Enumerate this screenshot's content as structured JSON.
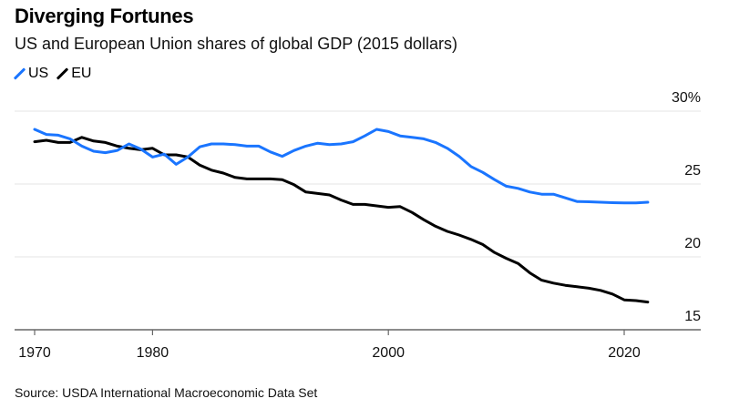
{
  "header": {
    "title": "Diverging Fortunes",
    "subtitle": "US and European Union shares of global GDP (2015 dollars)"
  },
  "legend": [
    {
      "label": "US",
      "color": "#1a75ff"
    },
    {
      "label": "EU",
      "color": "#000000"
    }
  ],
  "source": "Source: USDA International Macroeconomic Data Set",
  "chart_data": {
    "type": "line",
    "title": "Diverging Fortunes",
    "subtitle": "US and European Union shares of global GDP (2015 dollars)",
    "xlabel": "",
    "ylabel": "",
    "xlim": [
      1969,
      2025
    ],
    "ylim": [
      15,
      30
    ],
    "x_ticks": [
      1970,
      1980,
      2000,
      2020
    ],
    "x_tick_labels": [
      "1970",
      "1980",
      "2000",
      "2020"
    ],
    "y_ticks": [
      15,
      20,
      25,
      30
    ],
    "y_tick_labels": [
      "15",
      "20",
      "25",
      "30%"
    ],
    "y_axis_side": "right",
    "grid": true,
    "legend_position": "top-left",
    "x": [
      1970,
      1971,
      1972,
      1973,
      1974,
      1975,
      1976,
      1977,
      1978,
      1979,
      1980,
      1981,
      1982,
      1983,
      1984,
      1985,
      1986,
      1987,
      1988,
      1989,
      1990,
      1991,
      1992,
      1993,
      1994,
      1995,
      1996,
      1997,
      1998,
      1999,
      2000,
      2001,
      2002,
      2003,
      2004,
      2005,
      2006,
      2007,
      2008,
      2009,
      2010,
      2011,
      2012,
      2013,
      2014,
      2015,
      2016,
      2017,
      2018,
      2019,
      2020,
      2021,
      2022
    ],
    "series": [
      {
        "name": "US",
        "color": "#1a75ff",
        "values": [
          28.75,
          28.4,
          28.35,
          28.1,
          27.6,
          27.25,
          27.15,
          27.3,
          27.75,
          27.4,
          26.85,
          27.05,
          26.35,
          26.85,
          27.55,
          27.75,
          27.75,
          27.7,
          27.6,
          27.6,
          27.2,
          26.9,
          27.3,
          27.6,
          27.8,
          27.7,
          27.75,
          27.9,
          28.3,
          28.75,
          28.6,
          28.3,
          28.2,
          28.1,
          27.85,
          27.45,
          26.9,
          26.2,
          25.8,
          25.3,
          24.85,
          24.7,
          24.45,
          24.3,
          24.3,
          24.05,
          23.8,
          23.78,
          23.75,
          23.72,
          23.7,
          23.7,
          23.75
        ]
      },
      {
        "name": "EU",
        "color": "#000000",
        "values": [
          27.9,
          28.0,
          27.85,
          27.85,
          28.2,
          27.95,
          27.85,
          27.6,
          27.45,
          27.35,
          27.45,
          27.0,
          27.0,
          26.85,
          26.3,
          25.95,
          25.75,
          25.45,
          25.35,
          25.35,
          25.35,
          25.3,
          24.95,
          24.45,
          24.35,
          24.25,
          23.9,
          23.6,
          23.6,
          23.5,
          23.4,
          23.45,
          23.05,
          22.55,
          22.1,
          21.75,
          21.5,
          21.2,
          20.85,
          20.3,
          19.9,
          19.55,
          18.9,
          18.4,
          18.2,
          18.05,
          17.95,
          17.85,
          17.7,
          17.45,
          17.05,
          17.0,
          16.9
        ]
      }
    ]
  }
}
